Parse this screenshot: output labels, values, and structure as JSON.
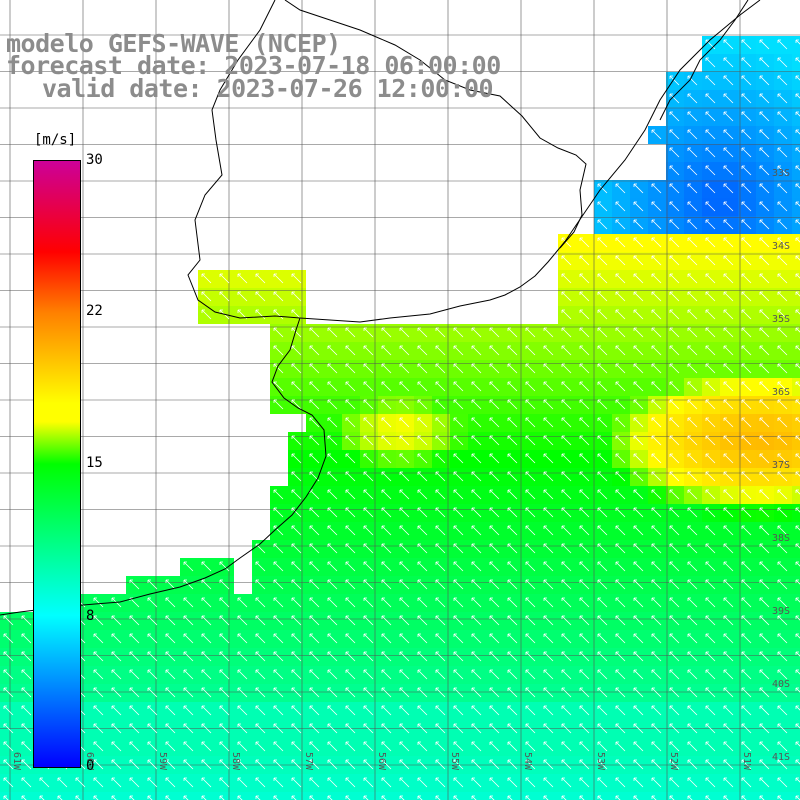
{
  "header": {
    "model": "modelo GEFS-WAVE (NCEP)",
    "forecast": "forecast date: 2023-07-18 06:00:00",
    "valid": "valid date: 2023-07-26 12:00:00"
  },
  "colorbar": {
    "unit": "[m/s]",
    "ticks": [
      "30",
      "22",
      "15",
      "8",
      "0"
    ],
    "tick_values": [
      30,
      22,
      15,
      8,
      0
    ],
    "min": 0,
    "max": 30,
    "colors": [
      "#0000ff",
      "#00ffff",
      "#00ff00",
      "#ffff00",
      "#ff8000",
      "#ff0000",
      "#cc0099"
    ]
  },
  "axes": {
    "lat_labels": [
      "33S",
      "34S",
      "35S",
      "36S",
      "37S",
      "38S",
      "39S",
      "40S",
      "41S"
    ],
    "lon_labels": [
      "61W",
      "60W",
      "59W",
      "58W",
      "57W",
      "56W",
      "55W",
      "54W",
      "53W",
      "52W",
      "51W"
    ],
    "grid": true
  },
  "wind_field": {
    "variable": "wind speed (m/s) with direction arrows",
    "arrow_direction": "from south-east (pointing north-west)",
    "max_region": "offshore east, ~36S-37S, orange (~18-19 m/s)",
    "min_region": "north-east corner ~33S, blue (~2-4 m/s)"
  }
}
